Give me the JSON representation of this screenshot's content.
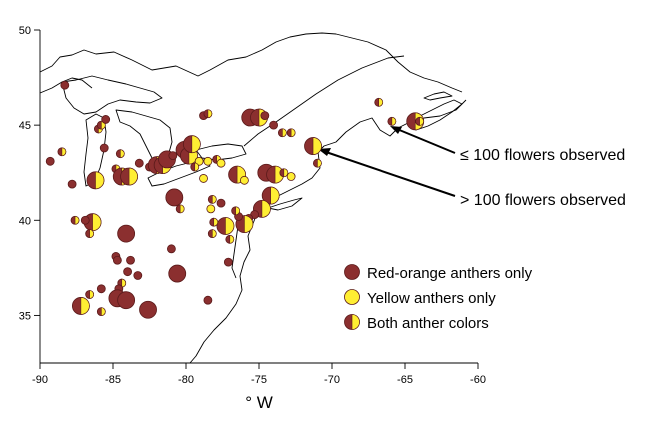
{
  "figure": {
    "x_axis": {
      "title": "° W",
      "range": [
        -90,
        -60
      ],
      "ticks": [
        -90,
        -85,
        -80,
        -75,
        -70,
        -65,
        -60
      ],
      "tick_labels": [
        "-90",
        "-85",
        "-80",
        "-75",
        "-70",
        "-65",
        "-60"
      ]
    },
    "y_axis": {
      "range": [
        32.5,
        50
      ],
      "ticks": [
        35,
        40,
        45,
        50
      ],
      "tick_labels": [
        "35",
        "40",
        "45",
        "50"
      ]
    },
    "colors": {
      "red_orange": "#8b2f2f",
      "yellow": "#ffee33",
      "outline": "#5a1a1a"
    },
    "legend": {
      "items": [
        {
          "label": "Red-orange anthers only",
          "kind": "red"
        },
        {
          "label": "Yellow anthers only",
          "kind": "yellow"
        },
        {
          "label": "Both anther colors",
          "kind": "both"
        }
      ]
    },
    "annotations": [
      {
        "text": "≤ 100 flowers observed"
      },
      {
        "text": "> 100 flowers observed"
      }
    ],
    "size_classes": [
      "≤ 100 flowers",
      "> 100 flowers"
    ]
  },
  "chart_data": {
    "type": "scatter",
    "subtype": "map-pie-markers",
    "xlabel": "° W",
    "xlim": [
      -90,
      -60
    ],
    "ylim": [
      32.5,
      50
    ],
    "points": [
      {
        "lon": -88.3,
        "lat": 47.1,
        "kind": "red",
        "size": "small"
      },
      {
        "lon": -89.3,
        "lat": 43.1,
        "kind": "red",
        "size": "small"
      },
      {
        "lon": -88.5,
        "lat": 43.6,
        "kind": "both",
        "size": "small"
      },
      {
        "lon": -87.8,
        "lat": 41.9,
        "kind": "red",
        "size": "small"
      },
      {
        "lon": -86.2,
        "lat": 42.1,
        "kind": "both",
        "size": "large"
      },
      {
        "lon": -86.0,
        "lat": 44.8,
        "kind": "both",
        "size": "small"
      },
      {
        "lon": -85.8,
        "lat": 45.0,
        "kind": "both",
        "size": "small"
      },
      {
        "lon": -85.5,
        "lat": 45.3,
        "kind": "red",
        "size": "small"
      },
      {
        "lon": -85.6,
        "lat": 43.8,
        "kind": "red",
        "size": "small"
      },
      {
        "lon": -84.5,
        "lat": 43.5,
        "kind": "both",
        "size": "small"
      },
      {
        "lon": -84.8,
        "lat": 42.7,
        "kind": "both",
        "size": "small"
      },
      {
        "lon": -84.4,
        "lat": 42.3,
        "kind": "both",
        "size": "large"
      },
      {
        "lon": -83.9,
        "lat": 42.3,
        "kind": "both",
        "size": "large"
      },
      {
        "lon": -83.2,
        "lat": 43.0,
        "kind": "red",
        "size": "small"
      },
      {
        "lon": -82.5,
        "lat": 42.8,
        "kind": "both",
        "size": "small"
      },
      {
        "lon": -82.0,
        "lat": 42.9,
        "kind": "both",
        "size": "large"
      },
      {
        "lon": -81.6,
        "lat": 42.9,
        "kind": "both",
        "size": "large"
      },
      {
        "lon": -81.3,
        "lat": 43.2,
        "kind": "red",
        "size": "large"
      },
      {
        "lon": -80.9,
        "lat": 43.4,
        "kind": "red",
        "size": "small"
      },
      {
        "lon": -80.4,
        "lat": 43.6,
        "kind": "both",
        "size": "small"
      },
      {
        "lon": -80.1,
        "lat": 43.7,
        "kind": "red",
        "size": "large"
      },
      {
        "lon": -79.8,
        "lat": 43.4,
        "kind": "both",
        "size": "large"
      },
      {
        "lon": -79.6,
        "lat": 44.0,
        "kind": "both",
        "size": "large"
      },
      {
        "lon": -79.1,
        "lat": 43.1,
        "kind": "yellow",
        "size": "small"
      },
      {
        "lon": -78.5,
        "lat": 43.1,
        "kind": "yellow",
        "size": "small"
      },
      {
        "lon": -77.9,
        "lat": 43.2,
        "kind": "both",
        "size": "small"
      },
      {
        "lon": -77.6,
        "lat": 43.0,
        "kind": "yellow",
        "size": "small"
      },
      {
        "lon": -78.8,
        "lat": 42.2,
        "kind": "yellow",
        "size": "small"
      },
      {
        "lon": -79.4,
        "lat": 42.8,
        "kind": "both",
        "size": "small"
      },
      {
        "lon": -78.8,
        "lat": 45.5,
        "kind": "red",
        "size": "small"
      },
      {
        "lon": -78.5,
        "lat": 45.6,
        "kind": "both",
        "size": "small"
      },
      {
        "lon": -75.6,
        "lat": 45.4,
        "kind": "red",
        "size": "large"
      },
      {
        "lon": -75.0,
        "lat": 45.4,
        "kind": "both",
        "size": "large"
      },
      {
        "lon": -74.6,
        "lat": 45.5,
        "kind": "red",
        "size": "small"
      },
      {
        "lon": -74.0,
        "lat": 45.0,
        "kind": "red",
        "size": "small"
      },
      {
        "lon": -73.4,
        "lat": 44.6,
        "kind": "both",
        "size": "small"
      },
      {
        "lon": -72.8,
        "lat": 44.6,
        "kind": "both",
        "size": "small"
      },
      {
        "lon": -71.3,
        "lat": 43.9,
        "kind": "both",
        "size": "large"
      },
      {
        "lon": -71.0,
        "lat": 43.0,
        "kind": "both",
        "size": "small"
      },
      {
        "lon": -76.5,
        "lat": 42.4,
        "kind": "both",
        "size": "large"
      },
      {
        "lon": -76.0,
        "lat": 42.1,
        "kind": "yellow",
        "size": "small"
      },
      {
        "lon": -74.5,
        "lat": 42.5,
        "kind": "red",
        "size": "large"
      },
      {
        "lon": -73.9,
        "lat": 42.4,
        "kind": "both",
        "size": "large"
      },
      {
        "lon": -73.3,
        "lat": 42.5,
        "kind": "both",
        "size": "small"
      },
      {
        "lon": -72.8,
        "lat": 42.3,
        "kind": "yellow",
        "size": "small"
      },
      {
        "lon": -74.2,
        "lat": 41.3,
        "kind": "both",
        "size": "large"
      },
      {
        "lon": -74.8,
        "lat": 40.6,
        "kind": "both",
        "size": "large"
      },
      {
        "lon": -75.3,
        "lat": 40.3,
        "kind": "red",
        "size": "small"
      },
      {
        "lon": -75.7,
        "lat": 40.1,
        "kind": "red",
        "size": "small"
      },
      {
        "lon": -76.0,
        "lat": 39.8,
        "kind": "both",
        "size": "large"
      },
      {
        "lon": -76.4,
        "lat": 40.2,
        "kind": "red",
        "size": "small"
      },
      {
        "lon": -76.6,
        "lat": 40.5,
        "kind": "both",
        "size": "small"
      },
      {
        "lon": -77.3,
        "lat": 39.7,
        "kind": "both",
        "size": "large"
      },
      {
        "lon": -77.0,
        "lat": 39.0,
        "kind": "both",
        "size": "small"
      },
      {
        "lon": -77.6,
        "lat": 40.9,
        "kind": "red",
        "size": "small"
      },
      {
        "lon": -78.3,
        "lat": 40.6,
        "kind": "yellow",
        "size": "small"
      },
      {
        "lon": -78.2,
        "lat": 41.1,
        "kind": "both",
        "size": "small"
      },
      {
        "lon": -78.1,
        "lat": 39.9,
        "kind": "both",
        "size": "small"
      },
      {
        "lon": -78.2,
        "lat": 39.3,
        "kind": "both",
        "size": "small"
      },
      {
        "lon": -77.1,
        "lat": 37.8,
        "kind": "red",
        "size": "small"
      },
      {
        "lon": -80.8,
        "lat": 41.2,
        "kind": "red",
        "size": "large"
      },
      {
        "lon": -80.4,
        "lat": 40.6,
        "kind": "both",
        "size": "small"
      },
      {
        "lon": -80.6,
        "lat": 37.2,
        "kind": "red",
        "size": "large"
      },
      {
        "lon": -81.0,
        "lat": 38.5,
        "kind": "red",
        "size": "small"
      },
      {
        "lon": -78.5,
        "lat": 35.8,
        "kind": "red",
        "size": "small"
      },
      {
        "lon": -86.4,
        "lat": 39.9,
        "kind": "both",
        "size": "large"
      },
      {
        "lon": -86.9,
        "lat": 40.0,
        "kind": "red",
        "size": "small"
      },
      {
        "lon": -87.6,
        "lat": 40.0,
        "kind": "both",
        "size": "small"
      },
      {
        "lon": -86.6,
        "lat": 39.3,
        "kind": "both",
        "size": "small"
      },
      {
        "lon": -84.1,
        "lat": 39.3,
        "kind": "red",
        "size": "large"
      },
      {
        "lon": -84.8,
        "lat": 38.1,
        "kind": "red",
        "size": "small"
      },
      {
        "lon": -84.7,
        "lat": 37.9,
        "kind": "red",
        "size": "small"
      },
      {
        "lon": -83.8,
        "lat": 37.9,
        "kind": "red",
        "size": "small"
      },
      {
        "lon": -84.0,
        "lat": 37.3,
        "kind": "red",
        "size": "small"
      },
      {
        "lon": -83.3,
        "lat": 37.1,
        "kind": "red",
        "size": "small"
      },
      {
        "lon": -84.4,
        "lat": 36.7,
        "kind": "both",
        "size": "small"
      },
      {
        "lon": -84.6,
        "lat": 36.4,
        "kind": "red",
        "size": "small"
      },
      {
        "lon": -84.9,
        "lat": 36.0,
        "kind": "yellow",
        "size": "small"
      },
      {
        "lon": -84.7,
        "lat": 35.9,
        "kind": "red",
        "size": "large"
      },
      {
        "lon": -84.1,
        "lat": 35.8,
        "kind": "red",
        "size": "large"
      },
      {
        "lon": -82.6,
        "lat": 35.3,
        "kind": "red",
        "size": "large"
      },
      {
        "lon": -87.2,
        "lat": 35.5,
        "kind": "both",
        "size": "large"
      },
      {
        "lon": -86.6,
        "lat": 36.1,
        "kind": "both",
        "size": "small"
      },
      {
        "lon": -85.8,
        "lat": 35.2,
        "kind": "both",
        "size": "small"
      },
      {
        "lon": -85.8,
        "lat": 36.4,
        "kind": "red",
        "size": "small"
      },
      {
        "lon": -66.8,
        "lat": 46.2,
        "kind": "both",
        "size": "small"
      },
      {
        "lon": -65.9,
        "lat": 45.2,
        "kind": "both",
        "size": "small"
      },
      {
        "lon": -64.3,
        "lat": 45.2,
        "kind": "both",
        "size": "large"
      },
      {
        "lon": -64.0,
        "lat": 45.2,
        "kind": "both",
        "size": "small"
      }
    ]
  }
}
